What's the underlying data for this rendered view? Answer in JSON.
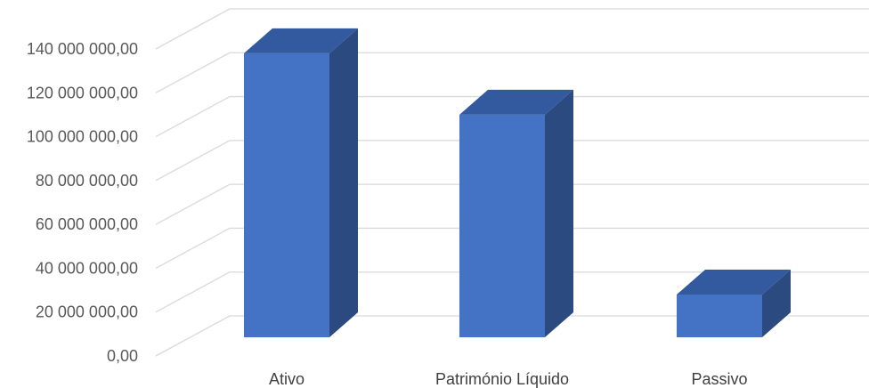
{
  "chart_data": {
    "type": "bar",
    "style": "3d-column",
    "categories": [
      "Ativo",
      "Património Líquido",
      "Passivo"
    ],
    "values": [
      138000000,
      110000000,
      28000000
    ],
    "y_ticks": [
      "0,00",
      "20 000 000,00",
      "40 000 000,00",
      "60 000 000,00",
      "80 000 000,00",
      "100 000 000,00",
      "120 000 000,00",
      "140 000 000,00"
    ],
    "ylim": [
      0,
      140000000
    ],
    "grid": true,
    "legend": "none",
    "colors": {
      "front": "#4472C4",
      "side": "#2B4A80",
      "top": "#335A9E",
      "grid": "#D9D9D9"
    }
  }
}
